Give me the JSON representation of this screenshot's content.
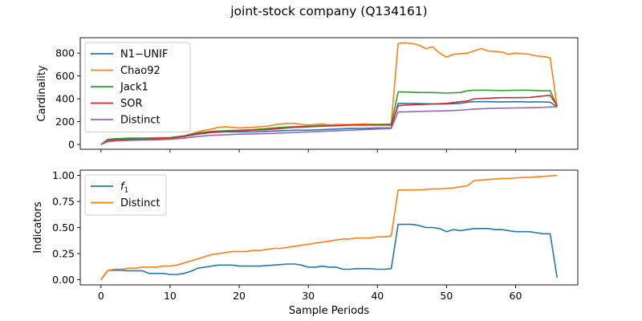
{
  "figure": {
    "title": "joint-stock company (Q134161)"
  },
  "chart_data": [
    {
      "type": "line",
      "ylabel": "Cardinality",
      "xlabel": "",
      "xlim": [
        -3,
        69
      ],
      "ylim": [
        -42,
        935
      ],
      "xticks": [
        0,
        10,
        20,
        30,
        40,
        50,
        60
      ],
      "xtick_labels_visible": false,
      "yticks": [
        0,
        200,
        400,
        600,
        800
      ],
      "legend": "top-left",
      "grid": false,
      "series": [
        {
          "name": "N1−UNIF",
          "color": "#1f77b4",
          "x": [
            0,
            1,
            2,
            4,
            6,
            8,
            10,
            12,
            14,
            16,
            18,
            20,
            22,
            24,
            26,
            28,
            30,
            32,
            34,
            36,
            38,
            40,
            42,
            43,
            44,
            46,
            48,
            50,
            52,
            53,
            54,
            56,
            58,
            60,
            62,
            64,
            65,
            66
          ],
          "y": [
            0,
            30,
            35,
            40,
            45,
            50,
            55,
            70,
            90,
            105,
            110,
            110,
            110,
            115,
            120,
            125,
            125,
            130,
            135,
            140,
            140,
            145,
            145,
            360,
            360,
            358,
            355,
            355,
            360,
            370,
            375,
            375,
            372,
            375,
            372,
            372,
            370,
            330
          ]
        },
        {
          "name": "Chao92",
          "color": "#ff7f0e",
          "x": [
            0,
            1,
            2,
            4,
            6,
            8,
            10,
            12,
            14,
            15,
            16,
            17,
            18,
            19,
            20,
            22,
            24,
            25,
            26,
            27,
            28,
            29,
            30,
            31,
            32,
            33,
            34,
            36,
            38,
            40,
            42,
            43,
            44,
            45,
            46,
            47,
            48,
            49,
            50,
            51,
            52,
            53,
            54,
            55,
            56,
            57,
            58,
            59,
            60,
            61,
            62,
            63,
            64,
            65,
            66
          ],
          "y": [
            0,
            40,
            45,
            55,
            55,
            60,
            60,
            75,
            110,
            125,
            135,
            150,
            155,
            150,
            145,
            150,
            160,
            170,
            180,
            185,
            185,
            175,
            170,
            175,
            180,
            170,
            175,
            175,
            180,
            175,
            180,
            885,
            890,
            885,
            870,
            840,
            855,
            800,
            765,
            790,
            795,
            800,
            820,
            840,
            820,
            815,
            810,
            790,
            800,
            795,
            790,
            775,
            770,
            760,
            330
          ]
        },
        {
          "name": "Jack1",
          "color": "#2ca02c",
          "x": [
            0,
            1,
            2,
            4,
            6,
            8,
            10,
            12,
            14,
            16,
            18,
            20,
            22,
            24,
            26,
            28,
            30,
            32,
            34,
            36,
            38,
            40,
            42,
            43,
            44,
            46,
            48,
            50,
            52,
            53,
            54,
            56,
            58,
            60,
            62,
            64,
            65,
            66
          ],
          "y": [
            0,
            45,
            50,
            55,
            55,
            55,
            60,
            75,
            100,
            115,
            120,
            125,
            130,
            140,
            150,
            155,
            160,
            165,
            165,
            170,
            170,
            175,
            175,
            460,
            460,
            455,
            455,
            450,
            455,
            470,
            475,
            475,
            472,
            475,
            475,
            470,
            472,
            335
          ]
        },
        {
          "name": "SOR",
          "color": "#d62728",
          "x": [
            0,
            1,
            2,
            4,
            6,
            8,
            10,
            12,
            14,
            16,
            18,
            20,
            22,
            24,
            26,
            28,
            30,
            32,
            34,
            36,
            38,
            40,
            42,
            43,
            44,
            46,
            48,
            50,
            52,
            53,
            54,
            56,
            58,
            60,
            62,
            64,
            65,
            66
          ],
          "y": [
            0,
            35,
            40,
            45,
            45,
            50,
            55,
            70,
            95,
            110,
            115,
            120,
            125,
            130,
            140,
            150,
            155,
            160,
            165,
            170,
            170,
            170,
            170,
            340,
            345,
            350,
            355,
            360,
            375,
            380,
            400,
            405,
            410,
            410,
            412,
            425,
            430,
            340
          ]
        },
        {
          "name": "Distinct",
          "color": "#9467bd",
          "x": [
            0,
            1,
            2,
            4,
            6,
            8,
            10,
            12,
            14,
            16,
            18,
            20,
            22,
            24,
            26,
            28,
            30,
            32,
            34,
            36,
            38,
            40,
            42,
            43,
            44,
            46,
            48,
            50,
            52,
            53,
            54,
            56,
            58,
            60,
            62,
            64,
            65,
            66
          ],
          "y": [
            0,
            25,
            30,
            35,
            38,
            40,
            45,
            55,
            70,
            80,
            85,
            90,
            92,
            95,
            100,
            105,
            110,
            115,
            120,
            125,
            130,
            135,
            140,
            285,
            285,
            290,
            292,
            295,
            300,
            305,
            310,
            315,
            318,
            320,
            322,
            325,
            328,
            330
          ]
        }
      ]
    },
    {
      "type": "line",
      "ylabel": "Indicators",
      "xlabel": "Sample Periods",
      "xlim": [
        -3,
        69
      ],
      "ylim": [
        -0.05,
        1.05
      ],
      "xticks": [
        0,
        10,
        20,
        30,
        40,
        50,
        60
      ],
      "xtick_labels": [
        "0",
        "10",
        "20",
        "30",
        "40",
        "50",
        "60"
      ],
      "yticks": [
        0.0,
        0.25,
        0.5,
        0.75,
        1.0
      ],
      "ytick_labels": [
        "0.00",
        "0.25",
        "0.50",
        "0.75",
        "1.00"
      ],
      "legend": "top-left",
      "grid": false,
      "series": [
        {
          "name": "f1",
          "color": "#1f77b4",
          "x": [
            0,
            1,
            2,
            3,
            4,
            5,
            6,
            7,
            8,
            9,
            10,
            11,
            12,
            13,
            14,
            15,
            16,
            17,
            18,
            19,
            20,
            21,
            22,
            23,
            24,
            25,
            26,
            27,
            28,
            29,
            30,
            31,
            32,
            33,
            34,
            35,
            36,
            37,
            38,
            39,
            40,
            41,
            42,
            43,
            44,
            45,
            46,
            47,
            48,
            49,
            50,
            51,
            52,
            53,
            54,
            55,
            56,
            57,
            58,
            59,
            60,
            61,
            62,
            63,
            64,
            65,
            66
          ],
          "y": [
            0.0,
            0.09,
            0.09,
            0.09,
            0.085,
            0.085,
            0.085,
            0.06,
            0.06,
            0.06,
            0.05,
            0.05,
            0.06,
            0.08,
            0.11,
            0.12,
            0.13,
            0.14,
            0.14,
            0.14,
            0.13,
            0.13,
            0.13,
            0.13,
            0.135,
            0.14,
            0.145,
            0.15,
            0.15,
            0.14,
            0.12,
            0.12,
            0.13,
            0.12,
            0.12,
            0.1,
            0.1,
            0.105,
            0.105,
            0.105,
            0.1,
            0.1,
            0.105,
            0.53,
            0.53,
            0.53,
            0.52,
            0.5,
            0.5,
            0.49,
            0.46,
            0.48,
            0.47,
            0.48,
            0.49,
            0.49,
            0.49,
            0.48,
            0.48,
            0.47,
            0.46,
            0.46,
            0.46,
            0.45,
            0.44,
            0.44,
            0.02
          ]
        },
        {
          "name": "Distinct",
          "color": "#ff7f0e",
          "x": [
            0,
            1,
            2,
            3,
            4,
            5,
            6,
            7,
            8,
            9,
            10,
            11,
            12,
            13,
            14,
            15,
            16,
            17,
            18,
            19,
            20,
            21,
            22,
            23,
            24,
            25,
            26,
            27,
            28,
            29,
            30,
            31,
            32,
            33,
            34,
            35,
            36,
            37,
            38,
            39,
            40,
            41,
            42,
            43,
            44,
            45,
            46,
            47,
            48,
            49,
            50,
            51,
            52,
            53,
            54,
            55,
            56,
            57,
            58,
            59,
            60,
            61,
            62,
            63,
            64,
            65,
            66
          ],
          "y": [
            0.0,
            0.09,
            0.1,
            0.1,
            0.11,
            0.11,
            0.12,
            0.12,
            0.12,
            0.13,
            0.13,
            0.14,
            0.16,
            0.18,
            0.2,
            0.22,
            0.24,
            0.25,
            0.26,
            0.27,
            0.27,
            0.27,
            0.28,
            0.28,
            0.29,
            0.3,
            0.3,
            0.31,
            0.32,
            0.33,
            0.34,
            0.35,
            0.36,
            0.37,
            0.38,
            0.39,
            0.39,
            0.4,
            0.4,
            0.4,
            0.41,
            0.41,
            0.42,
            0.86,
            0.86,
            0.86,
            0.86,
            0.865,
            0.87,
            0.87,
            0.875,
            0.88,
            0.89,
            0.9,
            0.95,
            0.955,
            0.96,
            0.965,
            0.97,
            0.97,
            0.975,
            0.98,
            0.98,
            0.985,
            0.99,
            0.995,
            1.0
          ]
        }
      ]
    }
  ]
}
